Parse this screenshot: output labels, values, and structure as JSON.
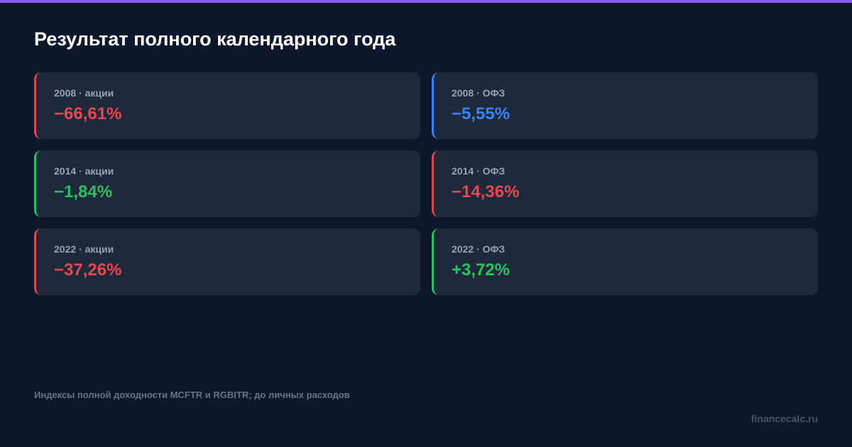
{
  "header": {
    "title": "Результат полного календарного года"
  },
  "cards": [
    {
      "label": "2008 · акции",
      "value": "−66,61%",
      "color": "#e5484d"
    },
    {
      "label": "2008 · ОФЗ",
      "value": "−5,55%",
      "color": "#3b82f6"
    },
    {
      "label": "2014 · акции",
      "value": "−1,84%",
      "color": "#22c55e"
    },
    {
      "label": "2014 · ОФЗ",
      "value": "−14,36%",
      "color": "#e5484d"
    },
    {
      "label": "2022 · акции",
      "value": "−37,26%",
      "color": "#e5484d"
    },
    {
      "label": "2022 · ОФЗ",
      "value": "+3,72%",
      "color": "#22c55e"
    }
  ],
  "footer": {
    "note": "Индексы полной доходности MCFTR и RGBITR; до личных расходов",
    "brand": "financecalc.ru"
  }
}
